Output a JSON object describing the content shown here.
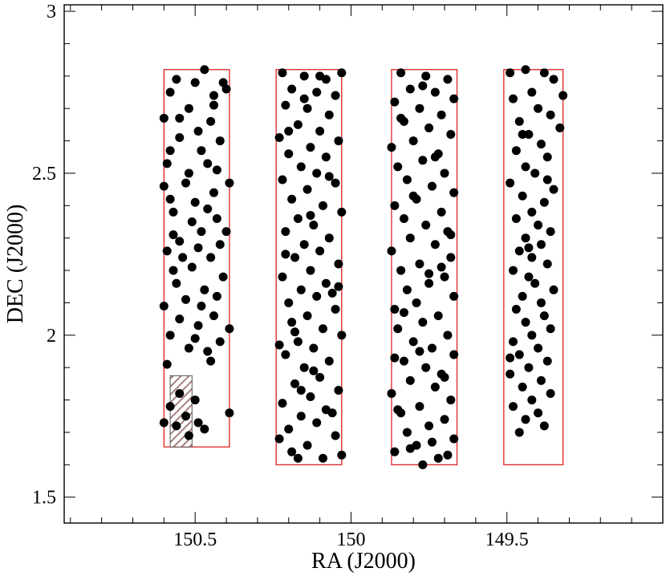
{
  "chart_data": {
    "type": "scatter",
    "title": "",
    "xlabel": "RA (J2000)",
    "ylabel": "DEC (J2000)",
    "x_reversed": true,
    "xlim": [
      150.92,
      149.0
    ],
    "ylim": [
      1.42,
      3.02
    ],
    "x_ticks": [
      150.5,
      150,
      149.5
    ],
    "x_tick_labels": [
      "150.5",
      "150",
      "149.5"
    ],
    "y_ticks": [
      1.5,
      2,
      2.5,
      3
    ],
    "y_tick_labels": [
      "1.5",
      "2",
      "2.5",
      "3"
    ],
    "x_minor_step": 0.1,
    "y_minor_step": 0.1,
    "grid": false,
    "legend": "none",
    "colors": {
      "points": "#000000",
      "fields": "#e02020",
      "hatch": "#9a7070"
    },
    "fields": [
      {
        "ra_min": 150.39,
        "ra_max": 150.6,
        "dec_min": 1.655,
        "dec_max": 2.82
      },
      {
        "ra_min": 150.03,
        "ra_max": 150.24,
        "dec_min": 1.6,
        "dec_max": 2.82
      },
      {
        "ra_min": 149.66,
        "ra_max": 149.87,
        "dec_min": 1.6,
        "dec_max": 2.82
      },
      {
        "ra_min": 149.32,
        "ra_max": 149.51,
        "dec_min": 1.6,
        "dec_max": 2.82
      }
    ],
    "masked_region": {
      "ra_min": 150.51,
      "ra_max": 150.58,
      "dec_min": 1.655,
      "dec_max": 1.875
    },
    "points": [
      [
        150.47,
        2.82
      ],
      [
        150.41,
        2.78
      ],
      [
        150.4,
        2.76
      ],
      [
        150.44,
        2.74
      ],
      [
        150.5,
        2.78
      ],
      [
        150.56,
        2.79
      ],
      [
        150.58,
        2.75
      ],
      [
        150.52,
        2.7
      ],
      [
        150.6,
        2.67
      ],
      [
        150.45,
        2.66
      ],
      [
        150.49,
        2.63
      ],
      [
        150.55,
        2.61
      ],
      [
        150.42,
        2.6
      ],
      [
        150.58,
        2.57
      ],
      [
        150.46,
        2.53
      ],
      [
        150.52,
        2.5
      ],
      [
        150.6,
        2.46
      ],
      [
        150.39,
        2.47
      ],
      [
        150.44,
        2.44
      ],
      [
        150.5,
        2.41
      ],
      [
        150.57,
        2.38
      ],
      [
        150.43,
        2.36
      ],
      [
        150.48,
        2.32
      ],
      [
        150.55,
        2.29
      ],
      [
        150.59,
        2.26
      ],
      [
        150.45,
        2.24
      ],
      [
        150.51,
        2.21
      ],
      [
        150.41,
        2.18
      ],
      [
        150.56,
        2.16
      ],
      [
        150.47,
        2.14
      ],
      [
        150.53,
        2.11
      ],
      [
        150.6,
        2.09
      ],
      [
        150.44,
        2.06
      ],
      [
        150.49,
        2.03
      ],
      [
        150.58,
        2.0
      ],
      [
        150.42,
        1.98
      ],
      [
        150.46,
        1.95
      ],
      [
        150.39,
        2.02
      ],
      [
        150.52,
        1.96
      ],
      [
        150.59,
        1.91
      ],
      [
        150.55,
        1.82
      ],
      [
        150.5,
        1.8
      ],
      [
        150.58,
        1.78
      ],
      [
        150.53,
        1.75
      ],
      [
        150.49,
        1.73
      ],
      [
        150.56,
        1.72
      ],
      [
        150.6,
        1.73
      ],
      [
        150.52,
        1.69
      ],
      [
        150.47,
        1.71
      ],
      [
        150.39,
        1.76
      ],
      [
        150.44,
        2.71
      ],
      [
        150.55,
        2.67
      ],
      [
        150.48,
        2.57
      ],
      [
        150.43,
        2.51
      ],
      [
        150.53,
        2.47
      ],
      [
        150.58,
        2.42
      ],
      [
        150.46,
        2.39
      ],
      [
        150.51,
        2.35
      ],
      [
        150.4,
        2.32
      ],
      [
        150.57,
        2.31
      ],
      [
        150.49,
        2.27
      ],
      [
        150.54,
        2.24
      ],
      [
        150.43,
        2.12
      ],
      [
        150.48,
        2.09
      ],
      [
        150.55,
        2.05
      ],
      [
        150.5,
        1.99
      ],
      [
        150.45,
        1.92
      ],
      [
        150.57,
        2.2
      ],
      [
        150.42,
        2.28
      ],
      [
        150.59,
        2.53
      ],
      [
        150.22,
        2.81
      ],
      [
        150.15,
        2.8
      ],
      [
        150.08,
        2.79
      ],
      [
        150.03,
        2.81
      ],
      [
        150.19,
        2.76
      ],
      [
        150.11,
        2.75
      ],
      [
        150.05,
        2.74
      ],
      [
        150.21,
        2.71
      ],
      [
        150.14,
        2.7
      ],
      [
        150.07,
        2.68
      ],
      [
        150.17,
        2.65
      ],
      [
        150.1,
        2.63
      ],
      [
        150.23,
        2.61
      ],
      [
        150.04,
        2.6
      ],
      [
        150.13,
        2.58
      ],
      [
        150.2,
        2.56
      ],
      [
        150.08,
        2.55
      ],
      [
        150.16,
        2.52
      ],
      [
        150.11,
        2.5
      ],
      [
        150.22,
        2.48
      ],
      [
        150.05,
        2.47
      ],
      [
        150.14,
        2.45
      ],
      [
        150.19,
        2.42
      ],
      [
        150.09,
        2.4
      ],
      [
        150.03,
        2.38
      ],
      [
        150.17,
        2.36
      ],
      [
        150.12,
        2.34
      ],
      [
        150.21,
        2.32
      ],
      [
        150.07,
        2.3
      ],
      [
        150.15,
        2.28
      ],
      [
        150.1,
        2.26
      ],
      [
        150.18,
        2.24
      ],
      [
        150.04,
        2.22
      ],
      [
        150.13,
        2.2
      ],
      [
        150.22,
        2.18
      ],
      [
        150.08,
        2.16
      ],
      [
        150.16,
        2.14
      ],
      [
        150.11,
        2.12
      ],
      [
        150.2,
        2.1
      ],
      [
        150.05,
        2.08
      ],
      [
        150.14,
        2.06
      ],
      [
        150.19,
        2.04
      ],
      [
        150.09,
        2.02
      ],
      [
        150.03,
        2.0
      ],
      [
        150.17,
        1.98
      ],
      [
        150.12,
        1.96
      ],
      [
        150.21,
        1.94
      ],
      [
        150.07,
        1.92
      ],
      [
        150.15,
        1.9
      ],
      [
        150.1,
        1.87
      ],
      [
        150.18,
        1.85
      ],
      [
        150.04,
        1.83
      ],
      [
        150.13,
        1.81
      ],
      [
        150.22,
        1.79
      ],
      [
        150.08,
        1.77
      ],
      [
        150.16,
        1.75
      ],
      [
        150.11,
        1.73
      ],
      [
        150.2,
        1.71
      ],
      [
        150.05,
        1.69
      ],
      [
        150.14,
        1.66
      ],
      [
        150.19,
        1.64
      ],
      [
        150.09,
        1.62
      ],
      [
        150.03,
        1.63
      ],
      [
        150.17,
        1.62
      ],
      [
        150.23,
        1.68
      ],
      [
        150.06,
        1.76
      ],
      [
        150.12,
        1.89
      ],
      [
        150.18,
        2.01
      ],
      [
        150.06,
        2.13
      ],
      [
        150.21,
        2.25
      ],
      [
        150.13,
        2.37
      ],
      [
        150.07,
        2.49
      ],
      [
        150.2,
        2.63
      ],
      [
        150.15,
        2.73
      ],
      [
        150.1,
        2.8
      ],
      [
        150.04,
        2.15
      ],
      [
        150.23,
        1.97
      ],
      [
        150.16,
        1.83
      ],
      [
        149.84,
        2.81
      ],
      [
        149.76,
        2.8
      ],
      [
        149.69,
        2.79
      ],
      [
        149.81,
        2.76
      ],
      [
        149.73,
        2.75
      ],
      [
        149.67,
        2.73
      ],
      [
        149.86,
        2.72
      ],
      [
        149.78,
        2.7
      ],
      [
        149.71,
        2.68
      ],
      [
        149.83,
        2.66
      ],
      [
        149.75,
        2.64
      ],
      [
        149.68,
        2.62
      ],
      [
        149.8,
        2.6
      ],
      [
        149.87,
        2.58
      ],
      [
        149.72,
        2.56
      ],
      [
        149.77,
        2.54
      ],
      [
        149.85,
        2.52
      ],
      [
        149.7,
        2.5
      ],
      [
        149.82,
        2.48
      ],
      [
        149.74,
        2.46
      ],
      [
        149.67,
        2.44
      ],
      [
        149.79,
        2.42
      ],
      [
        149.86,
        2.4
      ],
      [
        149.71,
        2.38
      ],
      [
        149.83,
        2.36
      ],
      [
        149.76,
        2.34
      ],
      [
        149.69,
        2.32
      ],
      [
        149.81,
        2.3
      ],
      [
        149.73,
        2.28
      ],
      [
        149.87,
        2.26
      ],
      [
        149.68,
        2.24
      ],
      [
        149.78,
        2.22
      ],
      [
        149.84,
        2.2
      ],
      [
        149.7,
        2.18
      ],
      [
        149.75,
        2.16
      ],
      [
        149.82,
        2.14
      ],
      [
        149.67,
        2.12
      ],
      [
        149.79,
        2.1
      ],
      [
        149.86,
        2.08
      ],
      [
        149.72,
        2.06
      ],
      [
        149.77,
        2.04
      ],
      [
        149.85,
        2.02
      ],
      [
        149.69,
        2.0
      ],
      [
        149.8,
        1.98
      ],
      [
        149.74,
        1.96
      ],
      [
        149.67,
        1.94
      ],
      [
        149.83,
        1.92
      ],
      [
        149.76,
        1.9
      ],
      [
        149.71,
        1.88
      ],
      [
        149.81,
        1.86
      ],
      [
        149.73,
        1.84
      ],
      [
        149.87,
        1.82
      ],
      [
        149.68,
        1.8
      ],
      [
        149.78,
        1.78
      ],
      [
        149.84,
        1.76
      ],
      [
        149.7,
        1.74
      ],
      [
        149.75,
        1.72
      ],
      [
        149.82,
        1.7
      ],
      [
        149.67,
        1.68
      ],
      [
        149.79,
        1.66
      ],
      [
        149.86,
        1.64
      ],
      [
        149.72,
        1.62
      ],
      [
        149.77,
        1.6
      ],
      [
        149.69,
        1.63
      ],
      [
        149.81,
        1.65
      ],
      [
        149.74,
        1.67
      ],
      [
        149.85,
        1.77
      ],
      [
        149.7,
        1.87
      ],
      [
        149.78,
        1.95
      ],
      [
        149.83,
        2.07
      ],
      [
        149.75,
        2.19
      ],
      [
        149.68,
        2.31
      ],
      [
        149.8,
        2.43
      ],
      [
        149.73,
        2.55
      ],
      [
        149.84,
        2.67
      ],
      [
        149.77,
        2.77
      ],
      [
        149.71,
        2.21
      ],
      [
        149.86,
        1.93
      ],
      [
        149.49,
        2.81
      ],
      [
        149.44,
        2.82
      ],
      [
        149.38,
        2.81
      ],
      [
        149.35,
        2.79
      ],
      [
        149.32,
        2.74
      ],
      [
        149.42,
        2.75
      ],
      [
        149.48,
        2.73
      ],
      [
        149.4,
        2.7
      ],
      [
        149.36,
        2.68
      ],
      [
        149.46,
        2.66
      ],
      [
        149.33,
        2.64
      ],
      [
        149.43,
        2.62
      ],
      [
        149.39,
        2.59
      ],
      [
        149.47,
        2.57
      ],
      [
        149.37,
        2.55
      ],
      [
        149.44,
        2.52
      ],
      [
        149.41,
        2.5
      ],
      [
        149.49,
        2.47
      ],
      [
        149.35,
        2.45
      ],
      [
        149.45,
        2.43
      ],
      [
        149.38,
        2.41
      ],
      [
        149.42,
        2.38
      ],
      [
        149.47,
        2.36
      ],
      [
        149.4,
        2.34
      ],
      [
        149.36,
        2.32
      ],
      [
        149.44,
        2.3
      ],
      [
        149.39,
        2.28
      ],
      [
        149.46,
        2.26
      ],
      [
        149.42,
        2.24
      ],
      [
        149.37,
        2.22
      ],
      [
        149.48,
        2.2
      ],
      [
        149.43,
        2.18
      ],
      [
        149.41,
        2.16
      ],
      [
        149.35,
        2.14
      ],
      [
        149.45,
        2.12
      ],
      [
        149.39,
        2.1
      ],
      [
        149.47,
        2.08
      ],
      [
        149.38,
        2.06
      ],
      [
        149.44,
        2.04
      ],
      [
        149.36,
        2.02
      ],
      [
        149.42,
        2.0
      ],
      [
        149.48,
        1.98
      ],
      [
        149.4,
        1.96
      ],
      [
        149.46,
        1.94
      ],
      [
        149.37,
        1.92
      ],
      [
        149.43,
        1.9
      ],
      [
        149.49,
        1.88
      ],
      [
        149.39,
        1.86
      ],
      [
        149.45,
        1.84
      ],
      [
        149.36,
        1.82
      ],
      [
        149.42,
        1.8
      ],
      [
        149.48,
        1.78
      ],
      [
        149.4,
        1.76
      ],
      [
        149.44,
        1.74
      ],
      [
        149.38,
        1.72
      ],
      [
        149.46,
        1.7
      ],
      [
        149.49,
        1.93
      ],
      [
        149.43,
        2.27
      ],
      [
        149.37,
        2.48
      ],
      [
        149.45,
        2.62
      ]
    ]
  }
}
